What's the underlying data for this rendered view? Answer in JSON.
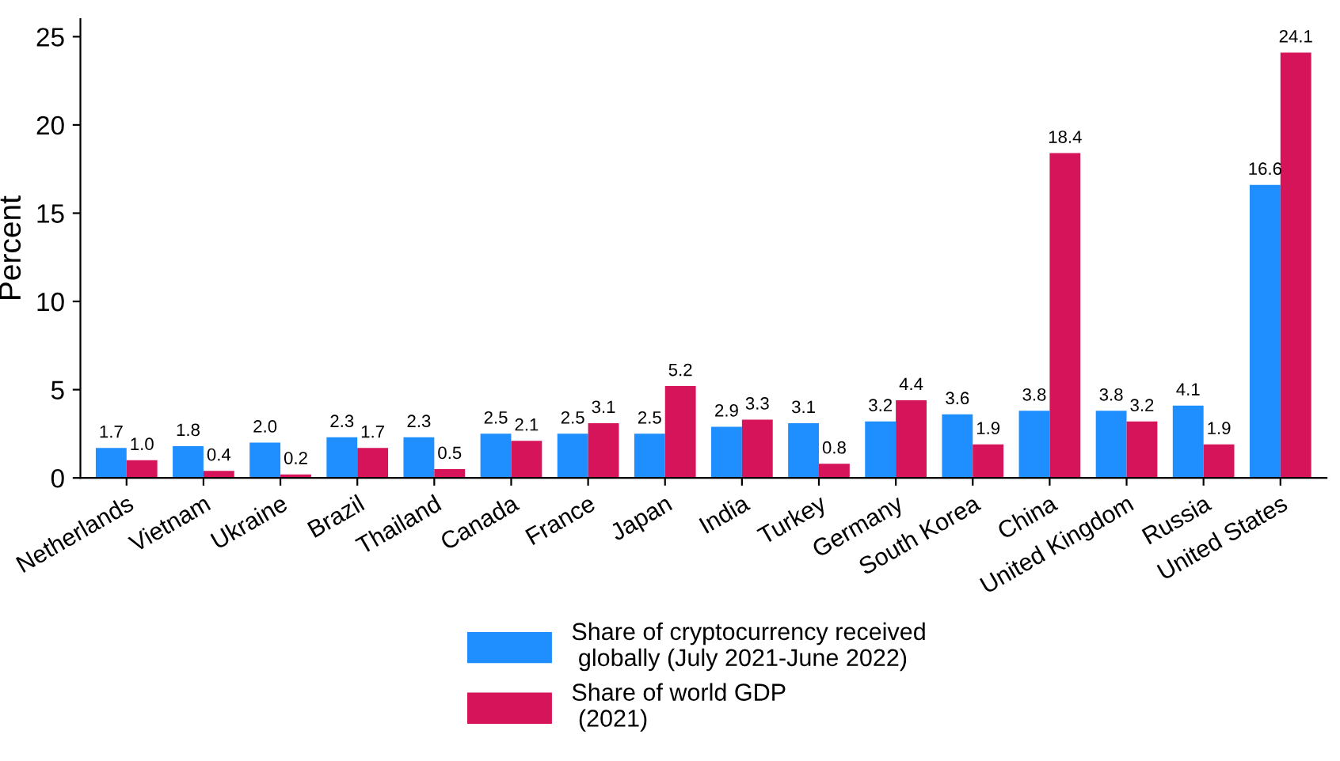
{
  "chart_data": {
    "type": "bar",
    "ylabel": "Percent",
    "categories": [
      "Netherlands",
      "Vietnam",
      "Ukraine",
      "Brazil",
      "Thailand",
      "Canada",
      "France",
      "Japan",
      "India",
      "Turkey",
      "Germany",
      "South Korea",
      "China",
      "United Kingdom",
      "Russia",
      "United States"
    ],
    "series": [
      {
        "name": "Share of cryptocurrency received\n globally (July 2021-June 2022)",
        "color": "#1f8fff",
        "values": [
          1.7,
          1.8,
          2.0,
          2.3,
          2.3,
          2.5,
          2.5,
          2.5,
          2.9,
          3.1,
          3.2,
          3.6,
          3.8,
          3.8,
          4.1,
          16.6
        ],
        "value_labels": [
          "1.7",
          "1.8",
          "2.0",
          "2.3",
          "2.3",
          "2.5",
          "2.5",
          "2.5",
          "2.9",
          "3.1",
          "3.2",
          "3.6",
          "3.8",
          "3.8",
          "4.1",
          "16.6"
        ]
      },
      {
        "name": "Share of world GDP\n (2021)",
        "color": "#d6145a",
        "values": [
          1.0,
          0.4,
          0.2,
          1.7,
          0.5,
          2.1,
          3.1,
          5.2,
          3.3,
          0.8,
          4.4,
          1.9,
          18.4,
          3.2,
          1.9,
          24.1
        ],
        "value_labels": [
          "1.0",
          "0.4",
          "0.2",
          "1.7",
          "0.5",
          "2.1",
          "3.1",
          "5.2",
          "3.3",
          "0.8",
          "4.4",
          "1.9",
          "18.4",
          "3.2",
          "1.9",
          "24.1"
        ]
      }
    ],
    "ylim": [
      0,
      26
    ],
    "yticks": [
      0,
      5,
      10,
      15,
      20,
      25
    ],
    "grid": false,
    "legend": "bottom"
  }
}
